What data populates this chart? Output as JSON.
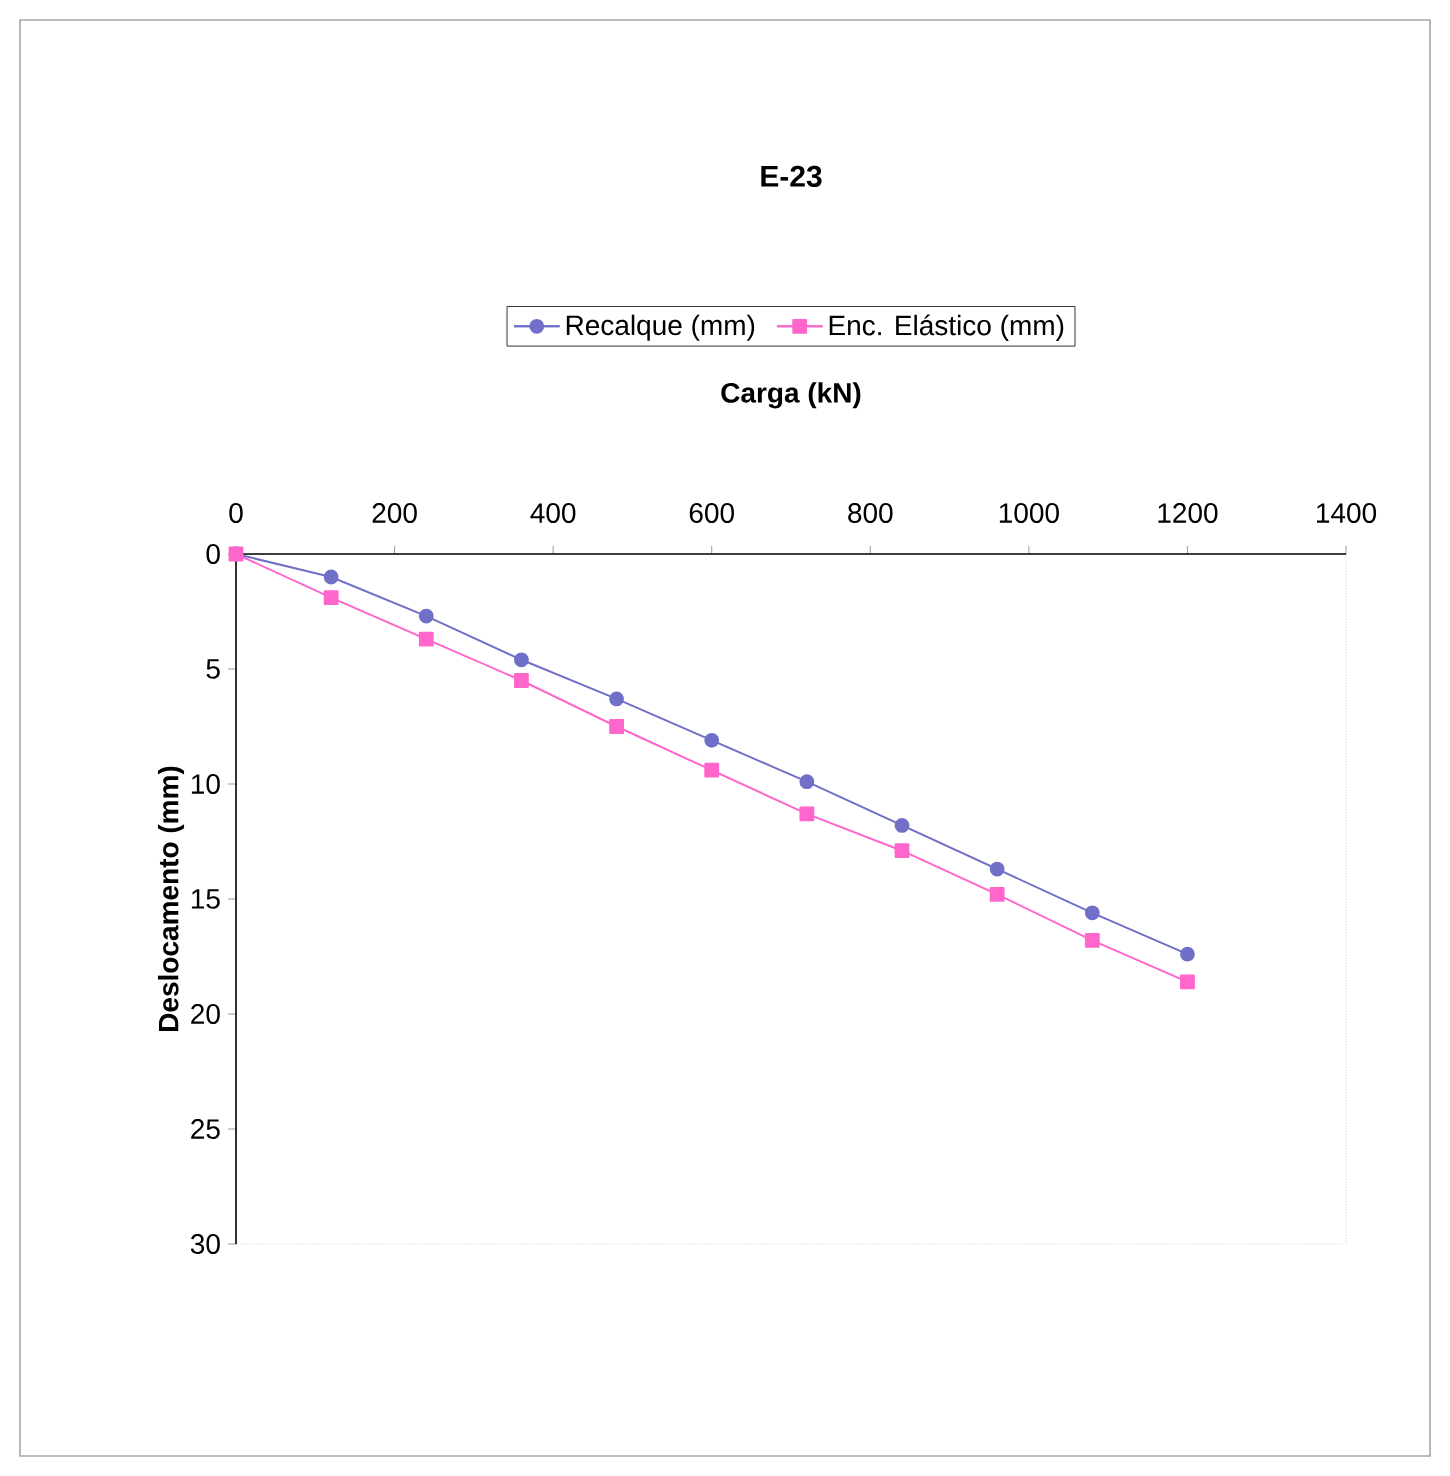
{
  "chart_data": {
    "type": "line",
    "title": "E-23",
    "xlabel": "Carga (kN)",
    "ylabel": "Deslocamento (mm)",
    "x": [
      0,
      120,
      240,
      360,
      480,
      600,
      720,
      840,
      960,
      1080,
      1200
    ],
    "series": [
      {
        "name": "Recalque  (mm)",
        "color": "#7070c8",
        "marker": "circle",
        "values": [
          0,
          1.0,
          2.7,
          4.6,
          6.3,
          8.1,
          9.9,
          11.8,
          13.7,
          15.6,
          17.4
        ]
      },
      {
        "name": "Enc. Elástico  (mm)",
        "color": "#ff66cc",
        "marker": "square",
        "values": [
          0,
          1.9,
          3.7,
          5.5,
          7.5,
          9.4,
          11.3,
          12.9,
          14.8,
          16.8,
          18.6
        ]
      }
    ],
    "xlim": [
      0,
      1400
    ],
    "xticks": [
      0,
      200,
      400,
      600,
      800,
      1000,
      1200,
      1400
    ],
    "ylim": [
      30,
      0
    ],
    "yticks": [
      0,
      5,
      10,
      15,
      20,
      25,
      30
    ],
    "grid": false,
    "legend": "top",
    "line_style": "solid"
  }
}
